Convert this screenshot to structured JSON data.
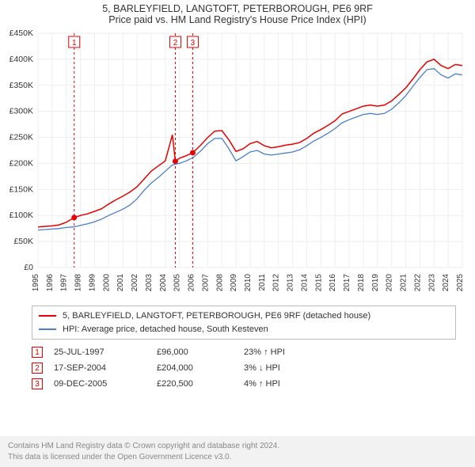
{
  "title_line1": "5, BARLEYFIELD, LANGTOFT, PETERBOROUGH, PE6 9RF",
  "title_line2": "Price paid vs. HM Land Registry's House Price Index (HPI)",
  "chart": {
    "type": "line",
    "background_color": "#ffffff",
    "grid_color": "#eeeeee",
    "axis_text_color": "#333333",
    "y": {
      "min": 0,
      "max": 450000,
      "step": 50000,
      "labels": [
        "£0",
        "£50K",
        "£100K",
        "£150K",
        "£200K",
        "£250K",
        "£300K",
        "£350K",
        "£400K",
        "£450K"
      ]
    },
    "x": {
      "min": 1995,
      "max": 2025,
      "labels": [
        "1995",
        "1996",
        "1997",
        "1998",
        "1999",
        "2000",
        "2001",
        "2002",
        "2003",
        "2004",
        "2005",
        "2006",
        "2007",
        "2008",
        "2009",
        "2010",
        "2011",
        "2012",
        "2013",
        "2014",
        "2015",
        "2016",
        "2017",
        "2018",
        "2019",
        "2020",
        "2021",
        "2022",
        "2023",
        "2024",
        "2025"
      ]
    },
    "series": [
      {
        "id": "price_paid",
        "label": "5, BARLEYFIELD, LANGTOFT, PETERBOROUGH, PE6 9RF (detached house)",
        "color": "#e60000",
        "line_width": 1.5,
        "points": [
          [
            1995.0,
            78000
          ],
          [
            1995.5,
            79000
          ],
          [
            1996.0,
            80000
          ],
          [
            1996.5,
            82000
          ],
          [
            1997.0,
            87000
          ],
          [
            1997.56,
            96000
          ],
          [
            1998.0,
            100000
          ],
          [
            1998.5,
            103000
          ],
          [
            1999.0,
            108000
          ],
          [
            1999.5,
            113000
          ],
          [
            2000.0,
            122000
          ],
          [
            2000.5,
            130000
          ],
          [
            2001.0,
            137000
          ],
          [
            2001.5,
            145000
          ],
          [
            2002.0,
            155000
          ],
          [
            2002.5,
            170000
          ],
          [
            2003.0,
            185000
          ],
          [
            2003.5,
            195000
          ],
          [
            2004.0,
            205000
          ],
          [
            2004.3,
            235000
          ],
          [
            2004.5,
            255000
          ],
          [
            2004.71,
            204000
          ],
          [
            2005.0,
            210000
          ],
          [
            2005.5,
            215000
          ],
          [
            2005.94,
            220500
          ],
          [
            2006.5,
            235000
          ],
          [
            2007.0,
            250000
          ],
          [
            2007.5,
            262000
          ],
          [
            2008.0,
            263000
          ],
          [
            2008.5,
            245000
          ],
          [
            2009.0,
            223000
          ],
          [
            2009.5,
            228000
          ],
          [
            2010.0,
            238000
          ],
          [
            2010.5,
            242000
          ],
          [
            2011.0,
            234000
          ],
          [
            2011.5,
            230000
          ],
          [
            2012.0,
            232000
          ],
          [
            2012.5,
            235000
          ],
          [
            2013.0,
            237000
          ],
          [
            2013.5,
            240000
          ],
          [
            2014.0,
            248000
          ],
          [
            2014.5,
            258000
          ],
          [
            2015.0,
            265000
          ],
          [
            2015.5,
            273000
          ],
          [
            2016.0,
            282000
          ],
          [
            2016.5,
            295000
          ],
          [
            2017.0,
            300000
          ],
          [
            2017.5,
            305000
          ],
          [
            2018.0,
            310000
          ],
          [
            2018.5,
            312000
          ],
          [
            2019.0,
            310000
          ],
          [
            2019.5,
            312000
          ],
          [
            2020.0,
            320000
          ],
          [
            2020.5,
            332000
          ],
          [
            2021.0,
            345000
          ],
          [
            2021.5,
            362000
          ],
          [
            2022.0,
            380000
          ],
          [
            2022.5,
            395000
          ],
          [
            2023.0,
            400000
          ],
          [
            2023.5,
            388000
          ],
          [
            2024.0,
            382000
          ],
          [
            2024.5,
            390000
          ],
          [
            2025.0,
            388000
          ]
        ]
      },
      {
        "id": "hpi",
        "label": "HPI: Average price, detached house, South Kesteven",
        "color": "#4a7ecb",
        "line_width": 1.3,
        "points": [
          [
            1995.0,
            72000
          ],
          [
            1995.5,
            73000
          ],
          [
            1996.0,
            74000
          ],
          [
            1996.5,
            75000
          ],
          [
            1997.0,
            77000
          ],
          [
            1997.5,
            78000
          ],
          [
            1998.0,
            81000
          ],
          [
            1998.5,
            84000
          ],
          [
            1999.0,
            88000
          ],
          [
            1999.5,
            93000
          ],
          [
            2000.0,
            100000
          ],
          [
            2000.5,
            106000
          ],
          [
            2001.0,
            112000
          ],
          [
            2001.5,
            120000
          ],
          [
            2002.0,
            132000
          ],
          [
            2002.5,
            148000
          ],
          [
            2003.0,
            162000
          ],
          [
            2003.5,
            173000
          ],
          [
            2004.0,
            185000
          ],
          [
            2004.5,
            197000
          ],
          [
            2005.0,
            200000
          ],
          [
            2005.5,
            205000
          ],
          [
            2006.0,
            212000
          ],
          [
            2006.5,
            224000
          ],
          [
            2007.0,
            238000
          ],
          [
            2007.5,
            248000
          ],
          [
            2008.0,
            248000
          ],
          [
            2008.5,
            228000
          ],
          [
            2009.0,
            205000
          ],
          [
            2009.5,
            213000
          ],
          [
            2010.0,
            222000
          ],
          [
            2010.5,
            225000
          ],
          [
            2011.0,
            218000
          ],
          [
            2011.5,
            216000
          ],
          [
            2012.0,
            218000
          ],
          [
            2012.5,
            220000
          ],
          [
            2013.0,
            222000
          ],
          [
            2013.5,
            226000
          ],
          [
            2014.0,
            234000
          ],
          [
            2014.5,
            243000
          ],
          [
            2015.0,
            250000
          ],
          [
            2015.5,
            258000
          ],
          [
            2016.0,
            267000
          ],
          [
            2016.5,
            278000
          ],
          [
            2017.0,
            284000
          ],
          [
            2017.5,
            289000
          ],
          [
            2018.0,
            294000
          ],
          [
            2018.5,
            296000
          ],
          [
            2019.0,
            294000
          ],
          [
            2019.5,
            296000
          ],
          [
            2020.0,
            304000
          ],
          [
            2020.5,
            316000
          ],
          [
            2021.0,
            330000
          ],
          [
            2021.5,
            348000
          ],
          [
            2022.0,
            365000
          ],
          [
            2022.5,
            380000
          ],
          [
            2023.0,
            382000
          ],
          [
            2023.5,
            370000
          ],
          [
            2024.0,
            364000
          ],
          [
            2024.5,
            372000
          ],
          [
            2025.0,
            370000
          ]
        ]
      }
    ],
    "event_markers": {
      "line_color": "#e60000",
      "dash": "3,3",
      "dot_color": "#e60000",
      "box_border": "#e60000",
      "box_text": "#e60000",
      "items": [
        {
          "n": "1",
          "x": 1997.56,
          "y": 96000
        },
        {
          "n": "2",
          "x": 2004.71,
          "y": 204000
        },
        {
          "n": "3",
          "x": 2005.94,
          "y": 220500
        }
      ]
    }
  },
  "legend": {
    "rows": [
      {
        "color": "#e60000",
        "label": "5, BARLEYFIELD, LANGTOFT, PETERBOROUGH, PE6 9RF (detached house)"
      },
      {
        "color": "#4a7ecb",
        "label": "HPI: Average price, detached house, South Kesteven"
      }
    ]
  },
  "events_table": [
    {
      "n": "1",
      "date": "25-JUL-1997",
      "price": "£96,000",
      "delta": "23% ↑ HPI"
    },
    {
      "n": "2",
      "date": "17-SEP-2004",
      "price": "£204,000",
      "delta": "3% ↓ HPI"
    },
    {
      "n": "3",
      "date": "09-DEC-2005",
      "price": "£220,500",
      "delta": "4% ↑ HPI"
    }
  ],
  "footer": {
    "line1": "Contains HM Land Registry data © Crown copyright and database right 2024.",
    "line2": "This data is licensed under the Open Government Licence v3.0."
  }
}
